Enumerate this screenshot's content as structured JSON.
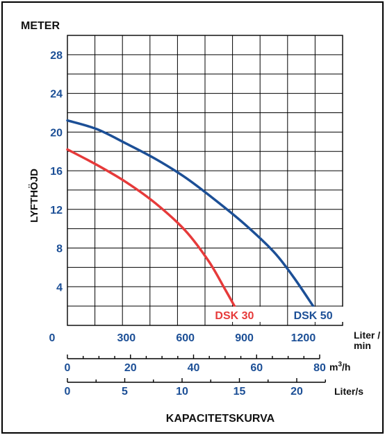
{
  "chart_data": {
    "type": "line",
    "title": "KAPACITETSKURVA",
    "ylabel": "LYFTHÖJD",
    "yunit": "METER",
    "ylim": [
      0,
      30
    ],
    "yticks": [
      4,
      8,
      12,
      16,
      20,
      24,
      28
    ],
    "grid": true,
    "xlim": [
      0,
      1400
    ],
    "x_axes": [
      {
        "unit": "Liter / min",
        "unit_line1": "Liter /",
        "unit_line2": "min",
        "ticks": [
          0,
          300,
          600,
          900,
          1200
        ]
      },
      {
        "unit": "m³/h",
        "unit_base": "m",
        "unit_sup": "3",
        "unit_rest": "/h",
        "ticks": [
          0,
          20,
          40,
          60,
          80
        ]
      },
      {
        "unit": "Liter/s",
        "ticks": [
          0,
          5,
          10,
          15,
          20
        ]
      }
    ],
    "series": [
      {
        "name": "DSK 30",
        "color": "#e63a3a",
        "points": [
          [
            0,
            18.2
          ],
          [
            150,
            16.6
          ],
          [
            300,
            14.8
          ],
          [
            450,
            12.6
          ],
          [
            600,
            9.8
          ],
          [
            720,
            6.6
          ],
          [
            800,
            3.8
          ],
          [
            850,
            2.0
          ]
        ]
      },
      {
        "name": "DSK 50",
        "color": "#1c4f96",
        "points": [
          [
            0,
            21.2
          ],
          [
            150,
            20.3
          ],
          [
            300,
            18.8
          ],
          [
            450,
            17.2
          ],
          [
            600,
            15.3
          ],
          [
            750,
            13.0
          ],
          [
            900,
            10.5
          ],
          [
            1050,
            7.6
          ],
          [
            1150,
            5.0
          ],
          [
            1250,
            2.0
          ]
        ]
      }
    ]
  },
  "colors": {
    "axis_text": "#1c4f96",
    "border": "#000000",
    "grid": "#000000"
  }
}
